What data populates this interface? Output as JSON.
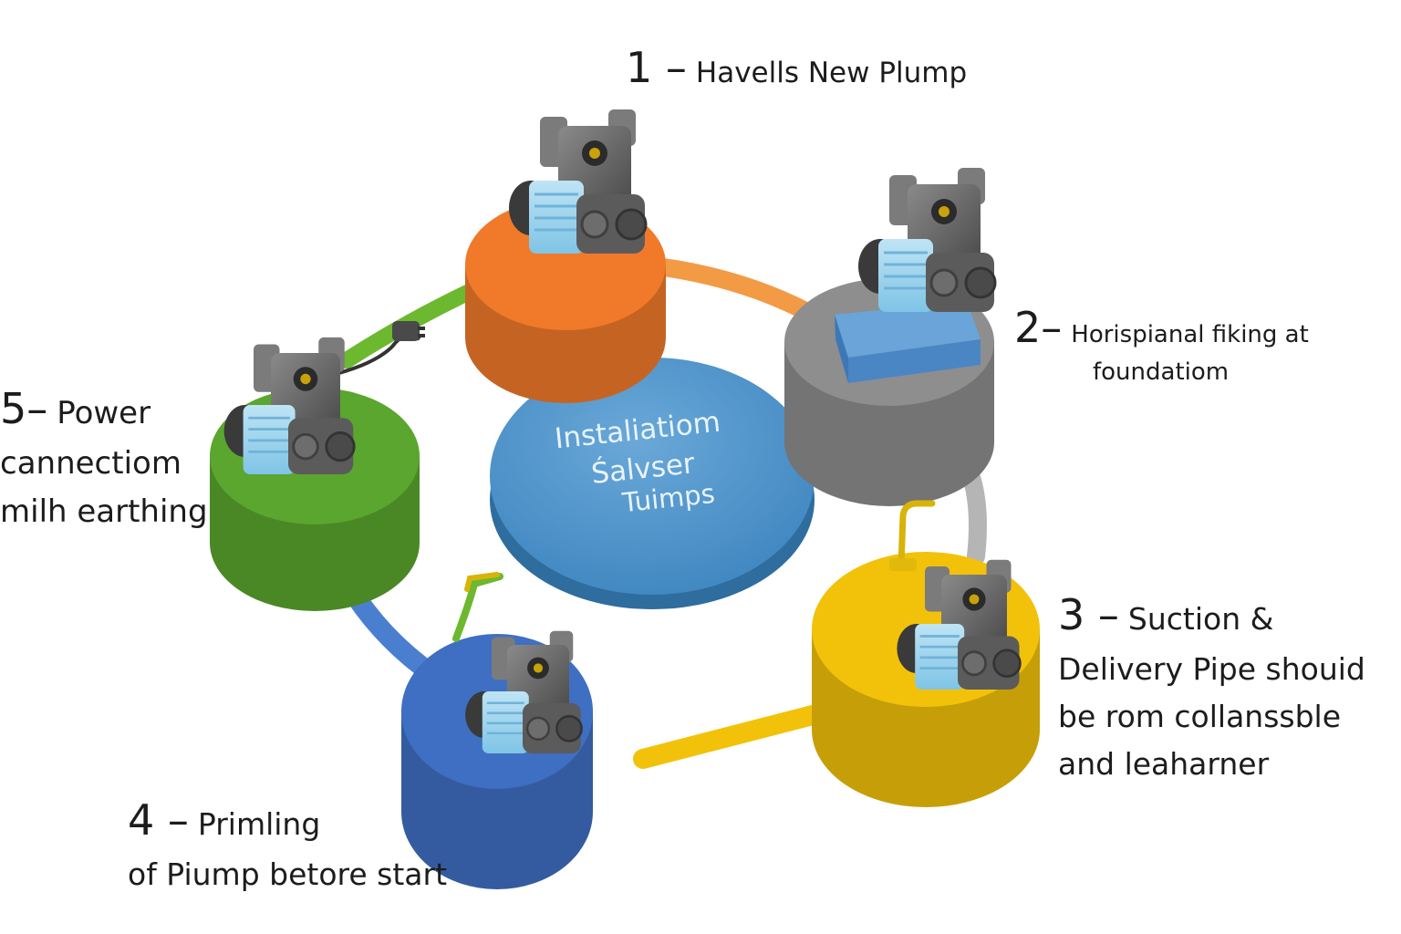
{
  "center": {
    "lines": [
      "Instaliatiom",
      "Śalvser",
      "Tuimps"
    ],
    "color": "#4a90c8"
  },
  "steps": [
    {
      "num": "1 –",
      "lines": [
        "Havells New Plump"
      ],
      "color": "#f07a2a"
    },
    {
      "num": "2–",
      "lines": [
        "Horispianal fiking at",
        "foundatiom"
      ],
      "color": "#8e8e8e"
    },
    {
      "num": "3 –",
      "lines": [
        "Suction &",
        "Delivery Pipe shouid",
        "be  rom collanssble",
        "and leaharner"
      ],
      "color": "#f2c20a"
    },
    {
      "num": "4 –",
      "lines": [
        "Primling",
        "of Piump betore start"
      ],
      "color": "#3f6fc2"
    },
    {
      "num": "5–",
      "lines": [
        "Power",
        "cannectiom",
        "milh earthing"
      ],
      "color": "#5aa62e"
    }
  ],
  "connectors": {
    "orange_to_gray": "#f39a45",
    "gray_to_yellow": "#b5b5b5",
    "yellow_to_blue": "#f2c20a",
    "blue_to_green": "#4a7fd0",
    "green_to_orange": "#6cb82f"
  },
  "icons": [
    "pump-icon",
    "power-plug-icon",
    "faucet-icon",
    "foundation-block-icon"
  ]
}
